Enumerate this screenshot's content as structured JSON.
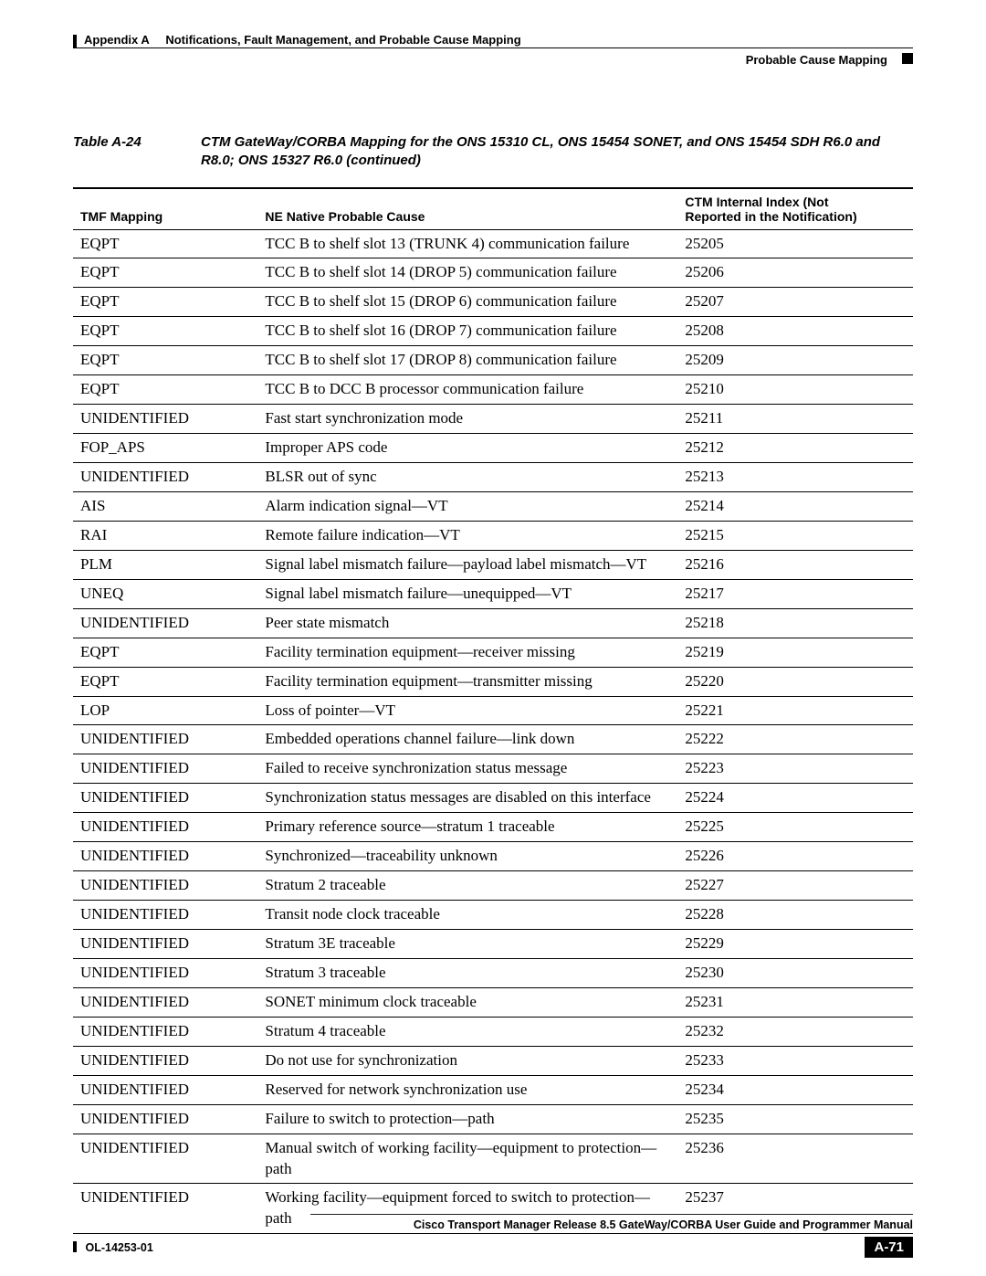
{
  "running_head": {
    "left": "Appendix A     Notifications, Fault Management, and Probable Cause Mapping",
    "right": "Probable Cause Mapping"
  },
  "caption": {
    "label": "Table A-24",
    "text": "CTM GateWay/CORBA Mapping for the ONS 15310 CL, ONS 15454 SONET, and ONS 15454 SDH R6.0 and R8.0; ONS 15327 R6.0 (continued)"
  },
  "table": {
    "columns": {
      "c1": "TMF Mapping",
      "c2": "NE Native Probable Cause",
      "c3_l1": "CTM Internal Index (Not",
      "c3_l2": "Reported in the Notification)"
    },
    "rows": [
      {
        "tmf": "EQPT",
        "cause": "TCC B to shelf slot 13 (TRUNK 4) communication failure",
        "idx": "25205"
      },
      {
        "tmf": "EQPT",
        "cause": "TCC B to shelf slot 14 (DROP 5) communication failure",
        "idx": "25206"
      },
      {
        "tmf": "EQPT",
        "cause": "TCC B to shelf slot 15 (DROP 6) communication failure",
        "idx": "25207"
      },
      {
        "tmf": "EQPT",
        "cause": "TCC B to shelf slot 16 (DROP 7) communication failure",
        "idx": "25208"
      },
      {
        "tmf": "EQPT",
        "cause": "TCC B to shelf slot 17 (DROP 8) communication failure",
        "idx": "25209"
      },
      {
        "tmf": "EQPT",
        "cause": "TCC B to DCC B processor communication failure",
        "idx": "25210"
      },
      {
        "tmf": "UNIDENTIFIED",
        "cause": "Fast start synchronization mode",
        "idx": "25211"
      },
      {
        "tmf": "FOP_APS",
        "cause": "Improper APS code",
        "idx": "25212"
      },
      {
        "tmf": "UNIDENTIFIED",
        "cause": "BLSR out of sync",
        "idx": "25213"
      },
      {
        "tmf": "AIS",
        "cause": "Alarm indication signal—VT",
        "idx": "25214"
      },
      {
        "tmf": "RAI",
        "cause": "Remote failure indication—VT",
        "idx": "25215"
      },
      {
        "tmf": "PLM",
        "cause": "Signal label mismatch failure—payload label mismatch—VT",
        "idx": "25216"
      },
      {
        "tmf": "UNEQ",
        "cause": "Signal label mismatch failure—unequipped—VT",
        "idx": "25217"
      },
      {
        "tmf": "UNIDENTIFIED",
        "cause": "Peer state mismatch",
        "idx": "25218"
      },
      {
        "tmf": "EQPT",
        "cause": "Facility termination equipment—receiver missing",
        "idx": "25219"
      },
      {
        "tmf": "EQPT",
        "cause": "Facility termination equipment—transmitter missing",
        "idx": "25220"
      },
      {
        "tmf": "LOP",
        "cause": "Loss of pointer—VT",
        "idx": "25221"
      },
      {
        "tmf": "UNIDENTIFIED",
        "cause": "Embedded operations channel failure—link down",
        "idx": "25222"
      },
      {
        "tmf": "UNIDENTIFIED",
        "cause": "Failed to receive synchronization status message",
        "idx": "25223"
      },
      {
        "tmf": "UNIDENTIFIED",
        "cause": "Synchronization status messages are disabled on this interface",
        "idx": "25224"
      },
      {
        "tmf": "UNIDENTIFIED",
        "cause": "Primary reference source—stratum 1 traceable",
        "idx": "25225"
      },
      {
        "tmf": "UNIDENTIFIED",
        "cause": "Synchronized—traceability unknown",
        "idx": "25226"
      },
      {
        "tmf": "UNIDENTIFIED",
        "cause": "Stratum 2 traceable",
        "idx": "25227"
      },
      {
        "tmf": "UNIDENTIFIED",
        "cause": "Transit node clock traceable",
        "idx": "25228"
      },
      {
        "tmf": "UNIDENTIFIED",
        "cause": "Stratum 3E traceable",
        "idx": "25229"
      },
      {
        "tmf": "UNIDENTIFIED",
        "cause": "Stratum 3 traceable",
        "idx": "25230"
      },
      {
        "tmf": "UNIDENTIFIED",
        "cause": "SONET minimum clock traceable",
        "idx": "25231"
      },
      {
        "tmf": "UNIDENTIFIED",
        "cause": "Stratum 4 traceable",
        "idx": "25232"
      },
      {
        "tmf": "UNIDENTIFIED",
        "cause": "Do not use for synchronization",
        "idx": "25233"
      },
      {
        "tmf": "UNIDENTIFIED",
        "cause": "Reserved for network synchronization use",
        "idx": "25234"
      },
      {
        "tmf": "UNIDENTIFIED",
        "cause": "Failure to switch to protection—path",
        "idx": "25235"
      },
      {
        "tmf": "UNIDENTIFIED",
        "cause": "Manual switch of working facility—equipment to protection—path",
        "idx": "25236"
      },
      {
        "tmf": "UNIDENTIFIED",
        "cause": "Working facility—equipment forced to switch to protection—path",
        "idx": "25237"
      }
    ]
  },
  "footer": {
    "manual": "Cisco Transport Manager Release 8.5 GateWay/CORBA User Guide and Programmer Manual",
    "doc_id": "OL-14253-01",
    "page": "A-71"
  }
}
